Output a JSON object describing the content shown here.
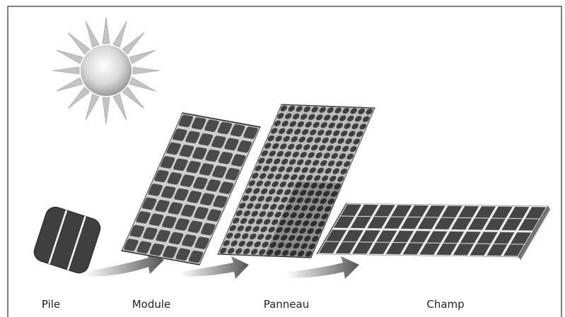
{
  "nodes": [
    {
      "label": "Pile"
    },
    {
      "label": "Module"
    },
    {
      "label": "Panneau"
    },
    {
      "label": "Champ"
    }
  ]
}
